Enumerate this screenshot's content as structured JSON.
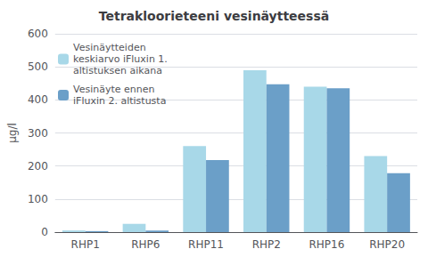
{
  "chart_data": {
    "type": "bar",
    "title": "Tetrakloorieteeni vesinäytteessä",
    "categories": [
      "RHP1",
      "RHP6",
      "RHP11",
      "RHP2",
      "RHP16",
      "RHP20"
    ],
    "series": [
      {
        "name": "Vesinäytteiden\nkeskiarvo iFluxin 1.\naltistuksen aikana",
        "color": "#A8D8E8",
        "values": [
          5,
          25,
          260,
          490,
          440,
          230
        ]
      },
      {
        "name": "Vesinäyte ennen\niFluxin 2. altistusta",
        "color": "#6B9FC8",
        "values": [
          3,
          5,
          218,
          447,
          435,
          178
        ]
      }
    ],
    "ylabel": "µg/l",
    "ylim": [
      0,
      600
    ],
    "yticks": [
      0,
      100,
      200,
      300,
      400,
      500,
      600
    ],
    "grid": true,
    "legend": "upper left"
  }
}
